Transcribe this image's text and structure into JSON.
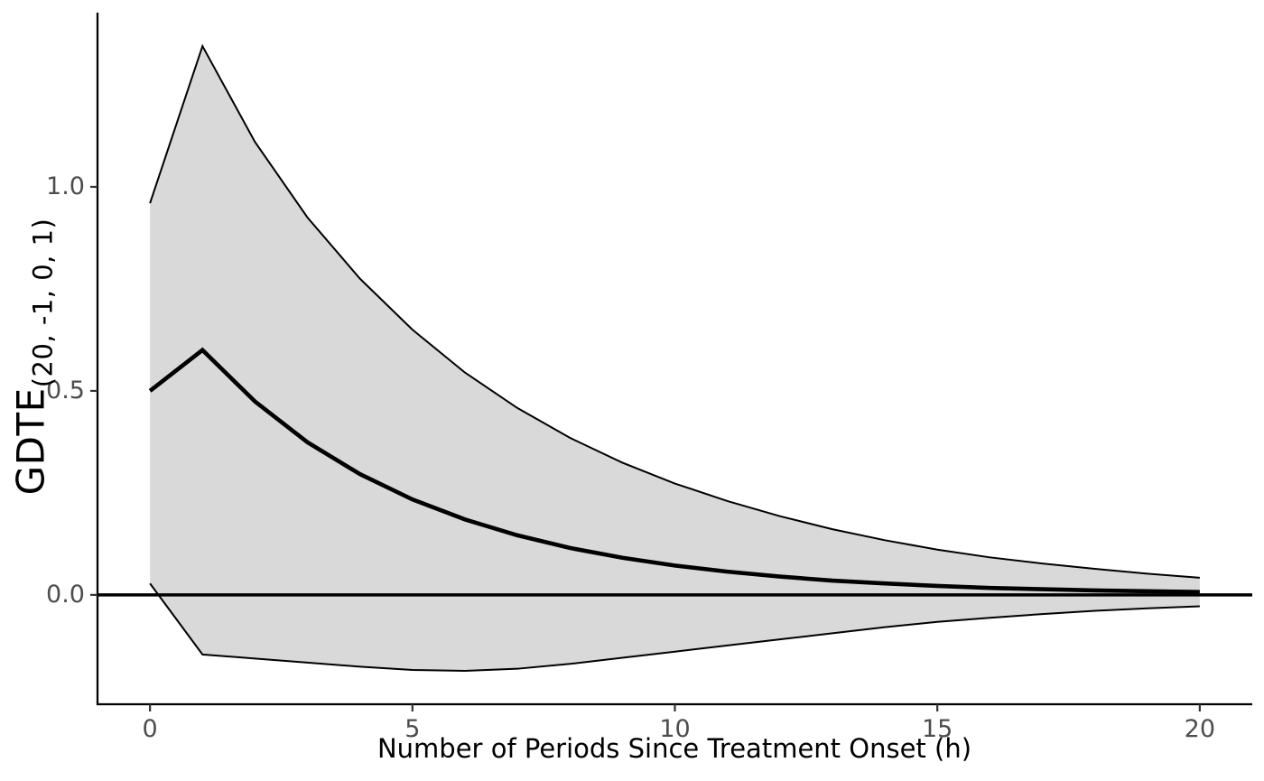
{
  "chart_data": {
    "type": "line",
    "title": "",
    "xlabel": "Number of Periods Since Treatment Onset (h)",
    "ylabel_main": "GDTE",
    "ylabel_subscript": "(20, -1, 0, 1)",
    "x": [
      0,
      1,
      2,
      3,
      4,
      5,
      6,
      7,
      8,
      9,
      10,
      11,
      12,
      13,
      14,
      15,
      16,
      17,
      18,
      19,
      20
    ],
    "series": [
      {
        "name": "estimate",
        "role": "point-estimate",
        "values": [
          0.5,
          0.6,
          0.474,
          0.374,
          0.296,
          0.234,
          0.185,
          0.146,
          0.115,
          0.091,
          0.072,
          0.057,
          0.045,
          0.035,
          0.028,
          0.022,
          0.017,
          0.014,
          0.011,
          0.009,
          0.007
        ]
      },
      {
        "name": "upper-ci",
        "role": "confidence-upper",
        "values": [
          0.96,
          1.345,
          1.11,
          0.925,
          0.775,
          0.65,
          0.545,
          0.458,
          0.385,
          0.324,
          0.273,
          0.23,
          0.193,
          0.161,
          0.134,
          0.111,
          0.092,
          0.077,
          0.064,
          0.052,
          0.042
        ]
      },
      {
        "name": "lower-ci",
        "role": "confidence-lower",
        "values": [
          0.028,
          -0.146,
          -0.156,
          -0.166,
          -0.176,
          -0.184,
          -0.186,
          -0.181,
          -0.169,
          -0.154,
          -0.139,
          -0.124,
          -0.109,
          -0.094,
          -0.079,
          -0.066,
          -0.056,
          -0.047,
          -0.039,
          -0.033,
          -0.028
        ]
      }
    ],
    "band": {
      "upper_series": "upper-ci",
      "lower_series": "lower-ci"
    },
    "reference_line_y": 0,
    "x_tick_values": [
      0,
      5,
      10,
      15,
      20
    ],
    "x_tick_labels": [
      "0",
      "5",
      "10",
      "15",
      "20"
    ],
    "y_tick_values": [
      0.0,
      0.5,
      1.0
    ],
    "y_tick_labels": [
      "0.0",
      "0.5",
      "1.0"
    ],
    "xlim": [
      -1,
      21
    ],
    "ylim": [
      -0.268,
      1.427
    ],
    "grid": false,
    "legend": "none",
    "colors": {
      "line": "#000000",
      "band_fill": "#d9d9d9",
      "band_edge": "#000000",
      "axis_line": "#000000",
      "tick_mark": "#333333",
      "tick_label": "#4d4d4d",
      "axis_title": "#000000",
      "background": "#ffffff"
    }
  }
}
